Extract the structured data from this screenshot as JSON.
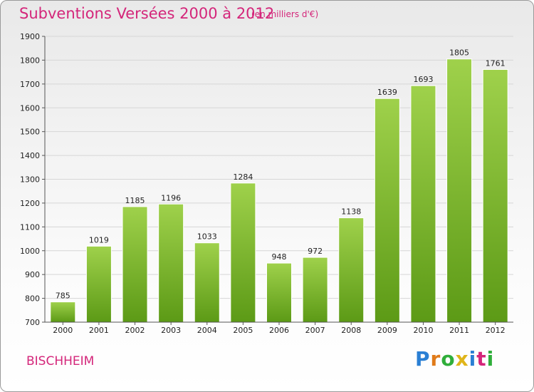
{
  "header": {
    "title": "Subventions Versées 2000 à 2012",
    "subtitle": "(en milliers d'€)"
  },
  "footer": {
    "city": "BISCHHEIM",
    "logo": {
      "letters": [
        "P",
        "r",
        "o",
        "x",
        "i",
        "t",
        "i"
      ],
      "colors": [
        "#2a7fd4",
        "#e07b1a",
        "#2fae3a",
        "#e0b51a",
        "#2a7fd4",
        "#d4267a",
        "#2fae3a"
      ]
    }
  },
  "colors": {
    "bar_top": "#9fd14b",
    "bar_bottom": "#5c9a16",
    "accent": "#d4267a"
  },
  "chart_data": {
    "type": "bar",
    "title": "Subventions Versées 2000 à 2012",
    "xlabel": "",
    "ylabel": "",
    "categories": [
      "2000",
      "2001",
      "2002",
      "2003",
      "2004",
      "2005",
      "2006",
      "2007",
      "2008",
      "2009",
      "2010",
      "2011",
      "2012"
    ],
    "values": [
      785,
      1019,
      1185,
      1196,
      1033,
      1284,
      948,
      972,
      1138,
      1639,
      1693,
      1805,
      1761
    ],
    "data_labels": [
      "785",
      "1019",
      "1185",
      "1196",
      "1033",
      "1284",
      "948",
      "972",
      "1138",
      "1639",
      "1693",
      "1805",
      "1761"
    ],
    "ylim": [
      700,
      1900
    ],
    "yticks": [
      700,
      800,
      900,
      1000,
      1100,
      1200,
      1300,
      1400,
      1500,
      1600,
      1700,
      1800,
      1900
    ],
    "grid": true
  }
}
